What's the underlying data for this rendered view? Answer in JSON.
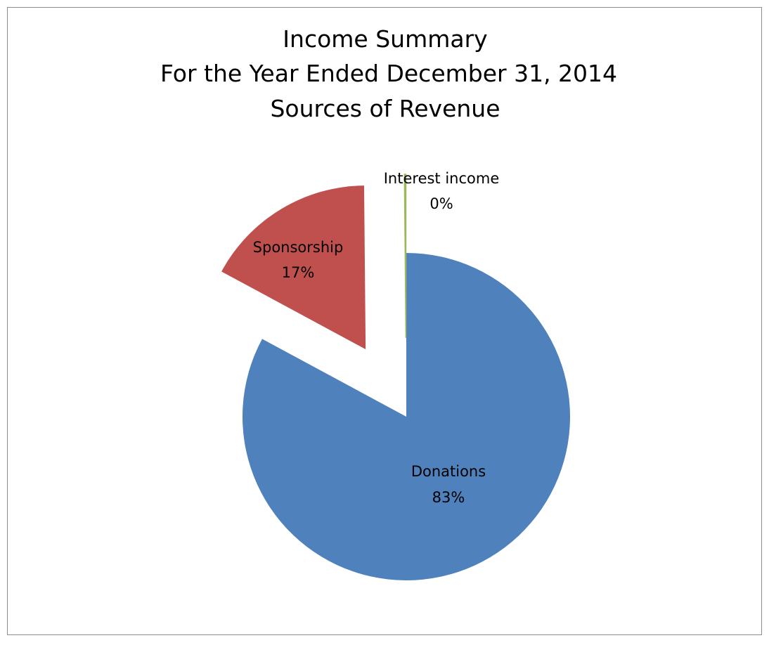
{
  "chart_data": {
    "type": "pie",
    "title": [
      "Income Summary",
      "For the Year Ended December 31, 2014",
      "Sources of Revenue"
    ],
    "slices": [
      {
        "name": "Donations",
        "value": 83,
        "label": "83%",
        "color": "#4f81bd",
        "exploded": false
      },
      {
        "name": "Sponsorship",
        "value": 17,
        "label": "17%",
        "color": "#c0504d",
        "exploded": true
      },
      {
        "name": "Interest income",
        "value": 0.15,
        "label": "0%",
        "color": "#9bbb59",
        "exploded": true
      }
    ],
    "legend": "none",
    "data_labels": "category-and-percent"
  }
}
